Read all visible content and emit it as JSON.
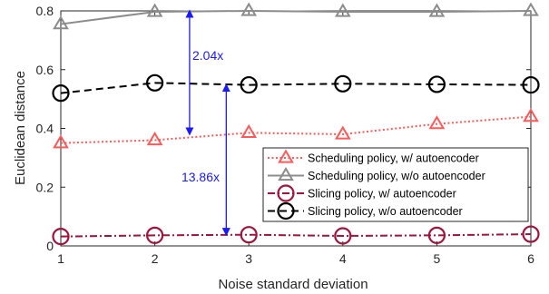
{
  "chart_data": {
    "type": "line",
    "xlabel": "Noise standard deviation",
    "ylabel": "Euclidean distance",
    "x": [
      1,
      2,
      3,
      4,
      5,
      6
    ],
    "xlim": [
      1,
      6
    ],
    "ylim": [
      0,
      0.8
    ],
    "xticks": [
      "1",
      "2",
      "3",
      "4",
      "5",
      "6"
    ],
    "yticks": [
      "0",
      "0.2",
      "0.4",
      "0.6",
      "0.8"
    ],
    "grid": false,
    "legend_position": "lower-right",
    "series": [
      {
        "name": "Scheduling policy, w/ autoencoder",
        "values": [
          0.35,
          0.36,
          0.385,
          0.38,
          0.415,
          0.44
        ],
        "color": "#ff5a5a",
        "line_style": "dotted",
        "marker": "triangle"
      },
      {
        "name": "Scheduling policy, w/o autoencoder",
        "values": [
          0.755,
          0.797,
          0.8,
          0.797,
          0.797,
          0.8
        ],
        "color": "#8c8c8c",
        "line_style": "solid",
        "marker": "triangle"
      },
      {
        "name": "Slicing policy, w/ autoencoder",
        "values": [
          0.032,
          0.036,
          0.038,
          0.034,
          0.036,
          0.04
        ],
        "color": "#a0143c",
        "line_style": "dash-dot",
        "marker": "circle"
      },
      {
        "name": "Slicing policy, w/o autoencoder",
        "values": [
          0.52,
          0.555,
          0.548,
          0.552,
          0.55,
          0.548
        ],
        "color": "#000000",
        "line_style": "dashed",
        "marker": "circle"
      }
    ],
    "annotations": [
      {
        "text": "2.04x",
        "x": 2.37,
        "y_from": 0.38,
        "y_to": 0.8,
        "color": "#1a1aff"
      },
      {
        "text": "13.86x",
        "x": 2.76,
        "y_from": 0.038,
        "y_to": 0.548,
        "color": "#1a1aff"
      }
    ]
  }
}
